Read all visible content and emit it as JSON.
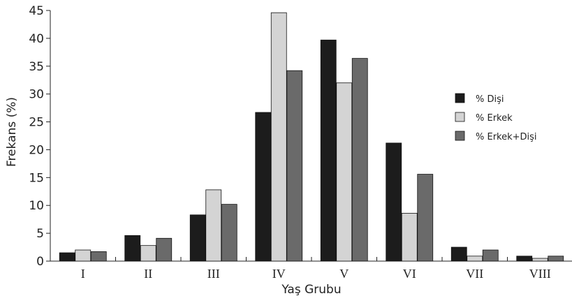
{
  "chart_data": {
    "type": "bar",
    "categories": [
      "I",
      "II",
      "III",
      "IV",
      "V",
      "VI",
      "VII",
      "VIII"
    ],
    "series": [
      {
        "name": "% Dişi",
        "color": "#1c1c1c",
        "values": [
          1.5,
          4.6,
          8.3,
          26.7,
          39.7,
          21.2,
          2.5,
          0.9
        ]
      },
      {
        "name": "% Erkek",
        "color": "#d4d4d4",
        "values": [
          2.0,
          2.8,
          12.8,
          44.6,
          32.0,
          8.6,
          0.9,
          0.5
        ]
      },
      {
        "name": "% Erkek+Dişi",
        "color": "#6a6a6a",
        "values": [
          1.7,
          4.1,
          10.2,
          34.2,
          36.4,
          15.6,
          2.0,
          0.9
        ]
      }
    ],
    "xlabel": "Yaş Grubu",
    "ylabel": "Frekans (%)",
    "ylim": [
      0,
      45
    ],
    "yticks": [
      "0",
      "5",
      "10",
      "15",
      "20",
      "25",
      "30",
      "35",
      "40",
      "45"
    ],
    "legend_position": "right",
    "grid": false
  }
}
